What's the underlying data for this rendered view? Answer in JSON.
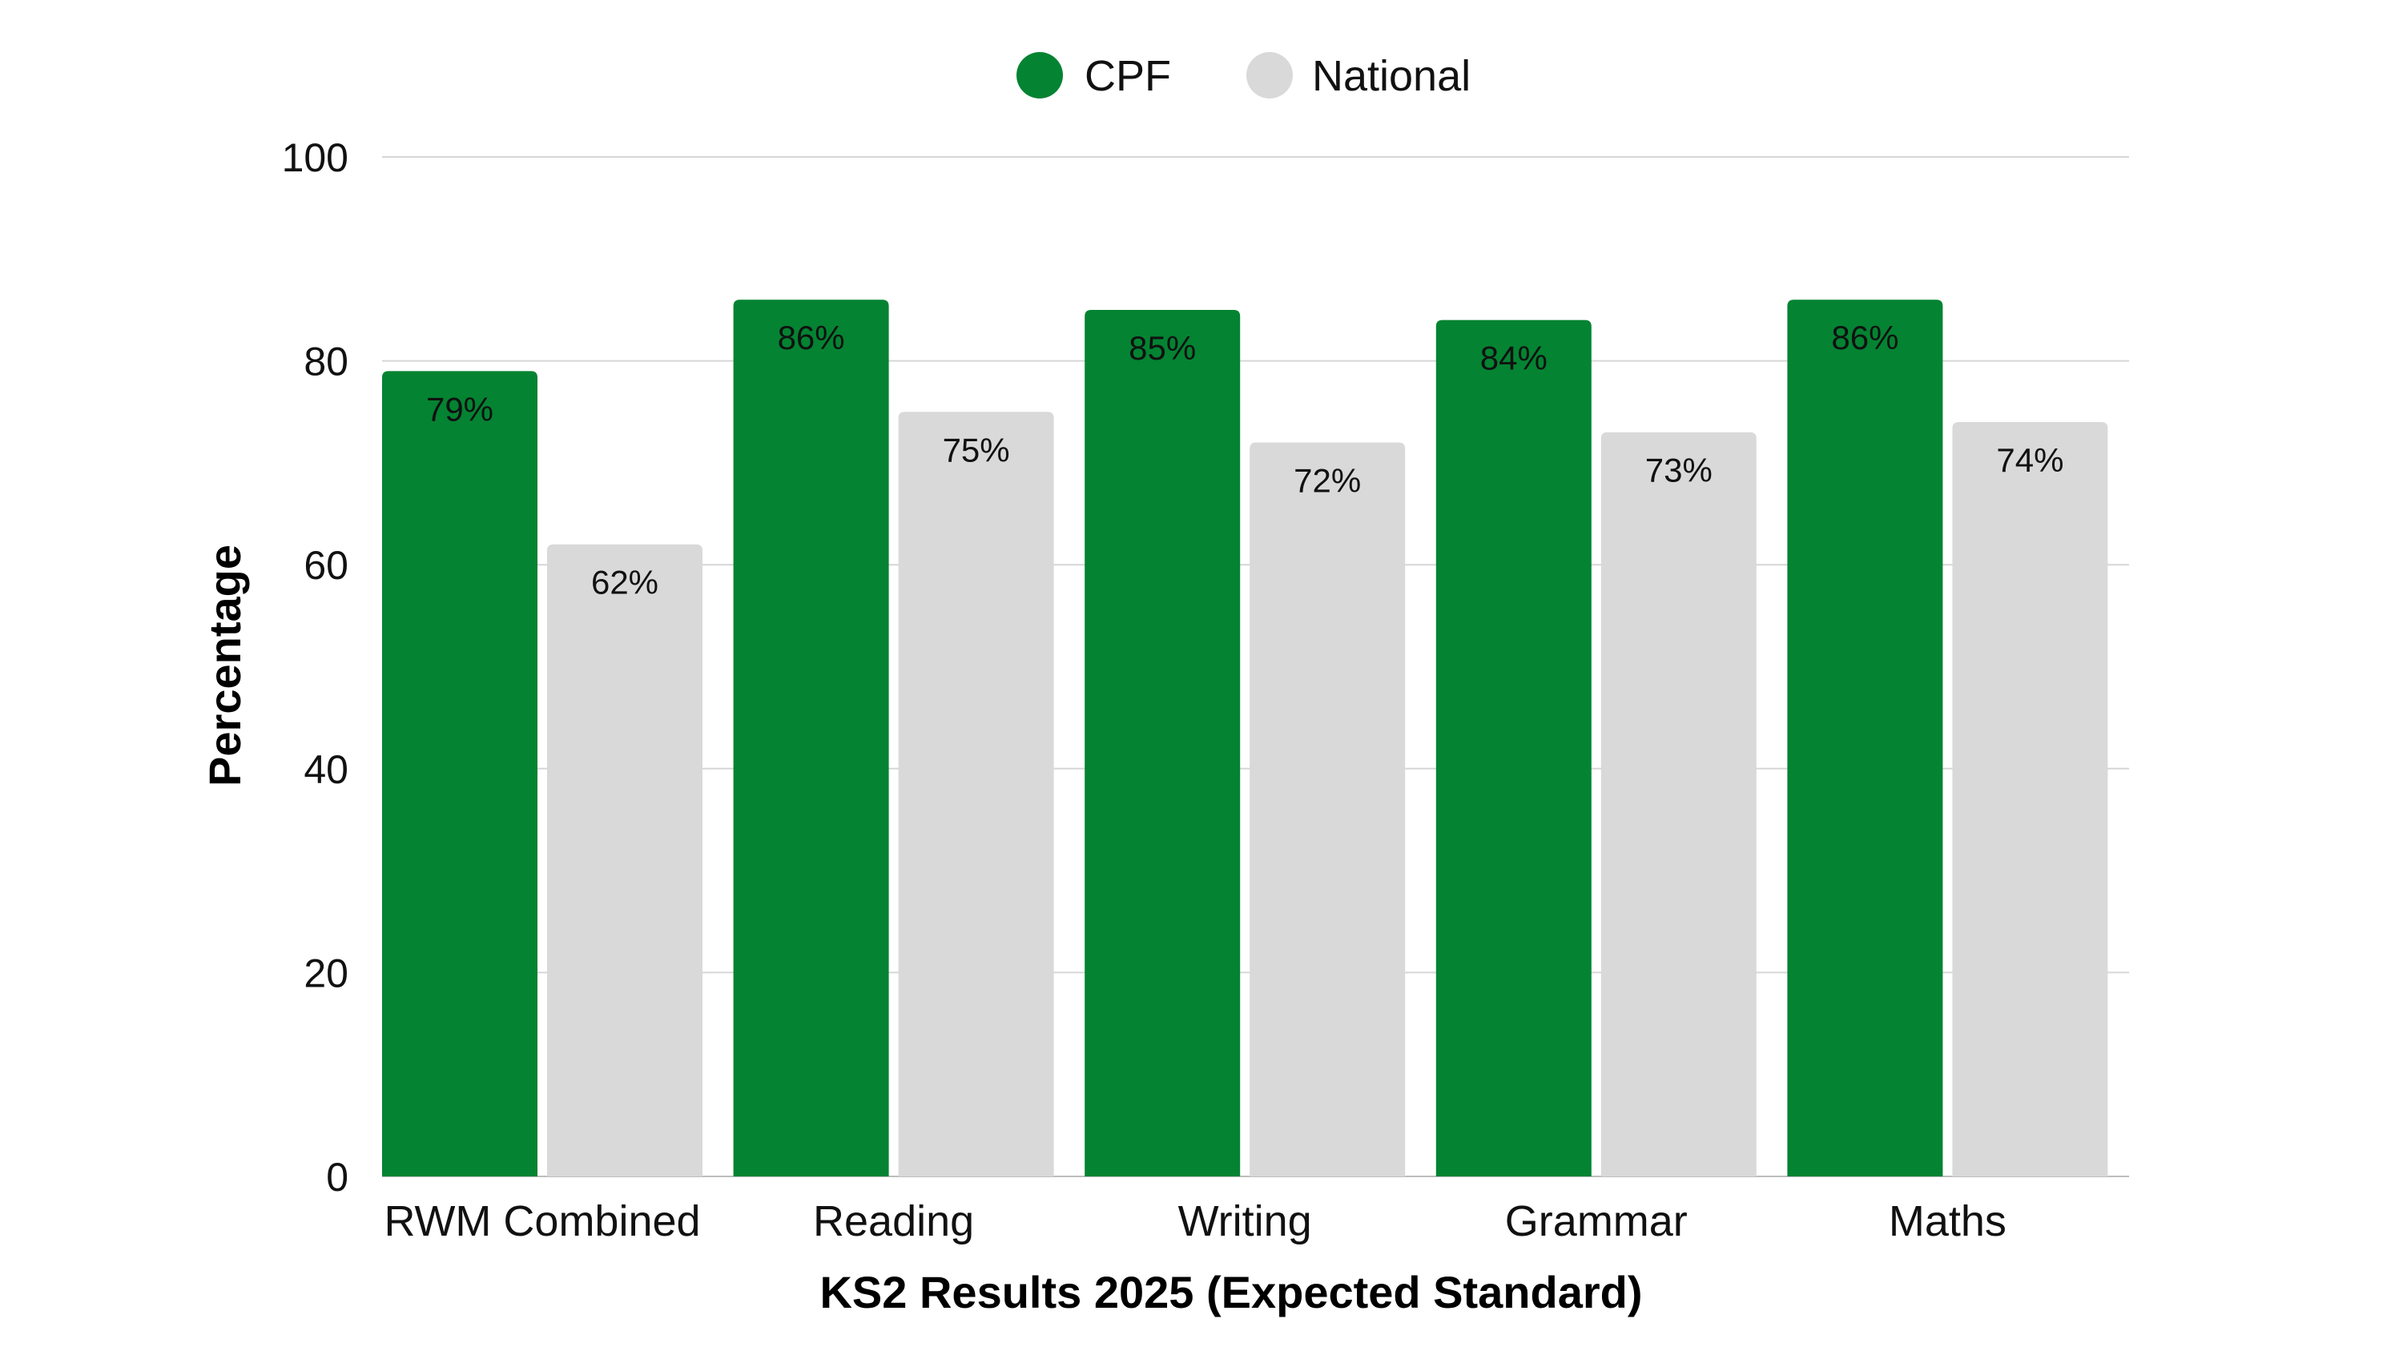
{
  "chart_data": {
    "type": "bar",
    "title": "",
    "xlabel": "KS2 Results 2025 (Expected Standard)",
    "ylabel": "Percentage",
    "ylim": [
      0,
      100
    ],
    "yticks": [
      "0",
      "20",
      "40",
      "60",
      "80",
      "100"
    ],
    "grid": true,
    "legend_position": "top",
    "categories": [
      "RWM Combined",
      "Reading",
      "Writing",
      "Grammar",
      "Maths"
    ],
    "series": [
      {
        "name": "CPF",
        "color": "#048332",
        "values": [
          79,
          86,
          85,
          84,
          86
        ],
        "labels": [
          "79%",
          "86%",
          "85%",
          "84%",
          "86%"
        ]
      },
      {
        "name": "National",
        "color": "#d9d9d9",
        "values": [
          62,
          75,
          72,
          73,
          74
        ],
        "labels": [
          "62%",
          "75%",
          "72%",
          "73%",
          "74%"
        ]
      }
    ]
  }
}
